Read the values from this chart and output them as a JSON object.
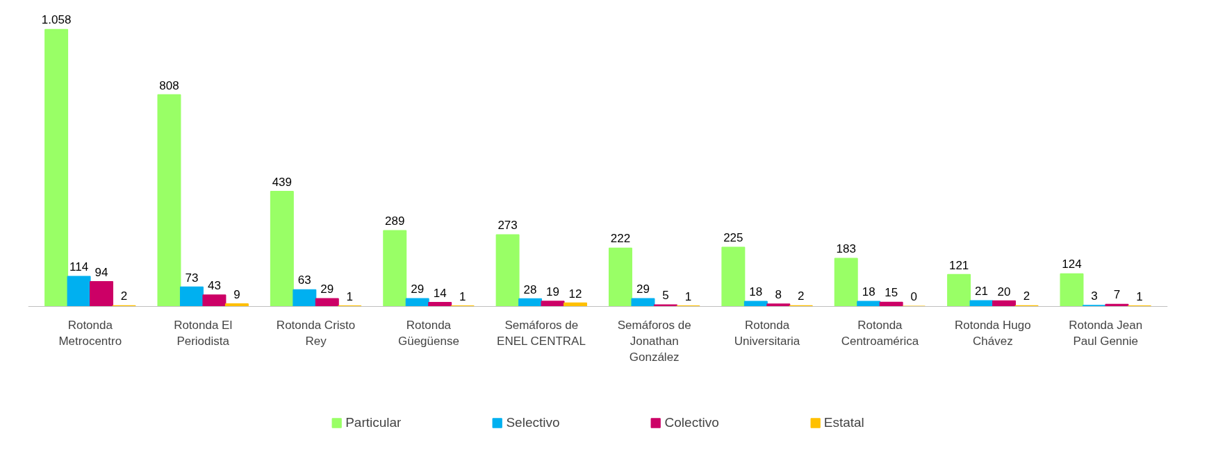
{
  "chart_data": {
    "type": "bar",
    "categories": [
      "Rotonda Metrocentro",
      "Rotonda El Periodista",
      "Rotonda Cristo Rey",
      "Rotonda Güegüense",
      "Semáforos de ENEL CENTRAL",
      "Semáforos de Jonathan González",
      "Rotonda Universitaria",
      "Rotonda Centroamérica",
      "Rotonda Hugo Chávez",
      "Rotonda Jean Paul Gennie"
    ],
    "series": [
      {
        "name": "Particular",
        "color": "#99ff66",
        "values": [
          1058,
          808,
          439,
          289,
          273,
          222,
          225,
          183,
          121,
          124
        ],
        "value_labels": [
          "1.058",
          "808",
          "439",
          "289",
          "273",
          "222",
          "225",
          "183",
          "121",
          "124"
        ]
      },
      {
        "name": "Selectivo",
        "color": "#00b0f0",
        "values": [
          114,
          73,
          63,
          29,
          28,
          29,
          18,
          18,
          21,
          3
        ],
        "value_labels": [
          "114",
          "73",
          "63",
          "29",
          "28",
          "29",
          "18",
          "18",
          "21",
          "3"
        ]
      },
      {
        "name": "Colectivo",
        "color": "#cc0066",
        "values": [
          94,
          43,
          29,
          14,
          19,
          5,
          8,
          15,
          20,
          7
        ],
        "value_labels": [
          "94",
          "43",
          "29",
          "14",
          "19",
          "5",
          "8",
          "15",
          "20",
          "7"
        ]
      },
      {
        "name": "Estatal",
        "color": "#ffc000",
        "values": [
          2,
          9,
          1,
          1,
          12,
          1,
          2,
          0,
          2,
          1
        ],
        "value_labels": [
          "2",
          "9",
          "1",
          "1",
          "12",
          "1",
          "2",
          "0",
          "2",
          "1"
        ]
      }
    ],
    "legend": "bottom",
    "grid": false
  }
}
